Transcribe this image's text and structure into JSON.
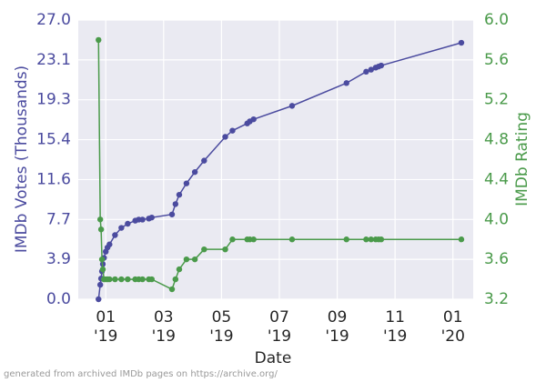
{
  "chart_data": {
    "type": "line",
    "xlabel": "Date",
    "ylabel": "IMDb Votes (Thousands)",
    "y2label": "IMDb Rating",
    "note": "generated from archived IMDb pages on https://archive.org/",
    "x": [
      0.75,
      0.81,
      0.84,
      0.87,
      0.9,
      0.94,
      1.0,
      1.06,
      1.13,
      1.32,
      1.54,
      1.76,
      2.02,
      2.14,
      2.27,
      2.49,
      2.59,
      3.29,
      3.41,
      3.54,
      3.79,
      4.08,
      4.4,
      5.13,
      5.38,
      5.89,
      5.98,
      6.11,
      7.44,
      9.32,
      10.0,
      10.17,
      10.33,
      10.43,
      10.52,
      13.29
    ],
    "series": [
      {
        "color": "#4b4b9f",
        "values": [
          0,
          1.4,
          2.0,
          2.7,
          3.4,
          4.0,
          4.6,
          5.0,
          5.3,
          6.2,
          6.9,
          7.3,
          7.6,
          7.7,
          7.7,
          7.8,
          7.9,
          8.2,
          9.2,
          10.1,
          11.2,
          12.3,
          13.4,
          15.7,
          16.3,
          17.0,
          17.2,
          17.4,
          18.7,
          20.9,
          22.0,
          22.2,
          22.4,
          22.5,
          22.6,
          24.8
        ]
      },
      {
        "color": "#4a9a4a",
        "axis": "y2",
        "values": [
          5.8,
          4.0,
          3.9,
          3.6,
          3.5,
          3.4,
          3.4,
          3.4,
          3.4,
          3.4,
          3.4,
          3.4,
          3.4,
          3.4,
          3.4,
          3.4,
          3.4,
          3.3,
          3.4,
          3.5,
          3.6,
          3.6,
          3.7,
          3.7,
          3.8,
          3.8,
          3.8,
          3.8,
          3.8,
          3.8,
          3.8,
          3.8,
          3.8,
          3.8,
          3.8,
          3.8
        ]
      }
    ],
    "xlim": [
      0.05,
      13.7
    ],
    "xticks": [
      {
        "value": 1,
        "label": [
          "01",
          "'19"
        ]
      },
      {
        "value": 3,
        "label": [
          "03",
          "'19"
        ]
      },
      {
        "value": 5,
        "label": [
          "05",
          "'19"
        ]
      },
      {
        "value": 7,
        "label": [
          "07",
          "'19"
        ]
      },
      {
        "value": 9,
        "label": [
          "09",
          "'19"
        ]
      },
      {
        "value": 11,
        "label": [
          "11",
          "'19"
        ]
      },
      {
        "value": 13,
        "label": [
          "01",
          "'20"
        ]
      }
    ],
    "ylim": [
      0,
      27
    ],
    "yticks": [
      {
        "value": 0,
        "label": "0.0"
      },
      {
        "value": 3.857,
        "label": "3.9"
      },
      {
        "value": 7.714,
        "label": "7.7"
      },
      {
        "value": 11.571,
        "label": "11.6"
      },
      {
        "value": 15.429,
        "label": "15.4"
      },
      {
        "value": 19.286,
        "label": "19.3"
      },
      {
        "value": 23.143,
        "label": "23.1"
      },
      {
        "value": 27,
        "label": "27.0"
      }
    ],
    "y2lim": [
      3.2,
      6.0
    ],
    "y2ticks": [
      3.2,
      3.6,
      {
        "value": 4,
        "label": "4.0"
      },
      4.4,
      4.8,
      5.2,
      5.6,
      {
        "value": 6,
        "label": "6.0"
      }
    ],
    "grid": true
  }
}
